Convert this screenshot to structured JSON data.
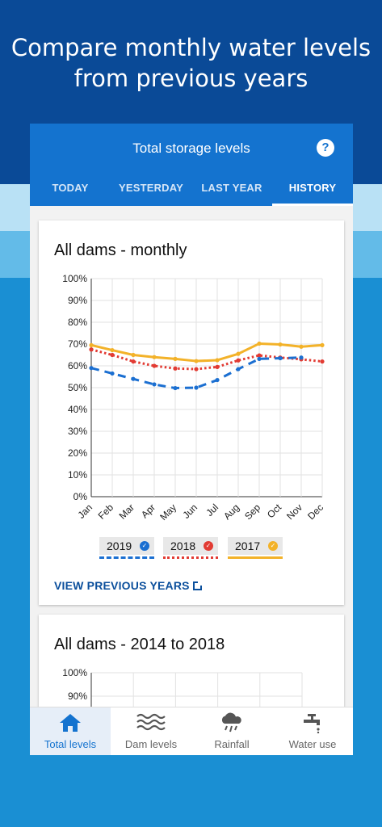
{
  "headline": {
    "line1": "Compare monthly water levels",
    "line2": "from previous years"
  },
  "appbar": {
    "title": "Total storage levels",
    "help_icon": "help-icon"
  },
  "tabs": [
    {
      "label": "TODAY"
    },
    {
      "label": "YESTERDAY"
    },
    {
      "label": "LAST YEAR"
    },
    {
      "label": "HISTORY",
      "active": true
    }
  ],
  "card1": {
    "title": "All dams - monthly",
    "link": "VIEW PREVIOUS YEARS",
    "legend": [
      {
        "label": "2019",
        "color": "#1b6fd1",
        "style": "dashed"
      },
      {
        "label": "2018",
        "color": "#e23b33",
        "style": "dotted"
      },
      {
        "label": "2017",
        "color": "#f3b229",
        "style": "solid"
      }
    ]
  },
  "card2": {
    "title": "All dams - 2014 to 2018",
    "y_ticks": [
      "100%",
      "90%"
    ]
  },
  "chart_data": {
    "type": "line",
    "title": "All dams - monthly",
    "categories": [
      "Jan",
      "Feb",
      "Mar",
      "Apr",
      "May",
      "Jun",
      "Jul",
      "Aug",
      "Sep",
      "Oct",
      "Nov",
      "Dec"
    ],
    "y_ticks": [
      "100%",
      "90%",
      "80%",
      "70%",
      "60%",
      "50%",
      "40%",
      "30%",
      "20%",
      "10%",
      "0%"
    ],
    "ylim": [
      0,
      100
    ],
    "grid": true,
    "legend_position": "bottom",
    "series": [
      {
        "name": "2019",
        "color": "#1b6fd1",
        "style": "dashed",
        "values": [
          59,
          56.5,
          54,
          51.5,
          49.8,
          50,
          53.5,
          58.5,
          63.2,
          63.5,
          63.8,
          null
        ]
      },
      {
        "name": "2018",
        "color": "#e23b33",
        "style": "dotted",
        "values": [
          67.5,
          65,
          62,
          60,
          58.8,
          58.5,
          59.5,
          62.5,
          64.8,
          63.8,
          63,
          62
        ]
      },
      {
        "name": "2017",
        "color": "#f3b229",
        "style": "solid",
        "values": [
          69.5,
          67.2,
          65,
          64,
          63.2,
          62.2,
          62.6,
          65.5,
          70.2,
          69.8,
          68.8,
          69.5
        ]
      }
    ]
  },
  "bottom_nav": [
    {
      "label": "Total levels",
      "icon": "house-icon",
      "active": true
    },
    {
      "label": "Dam levels",
      "icon": "waves-icon"
    },
    {
      "label": "Rainfall",
      "icon": "rain-cloud-icon"
    },
    {
      "label": "Water use",
      "icon": "tap-icon"
    }
  ]
}
